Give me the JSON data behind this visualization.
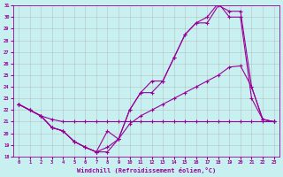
{
  "xlabel": "Windchill (Refroidissement éolien,°C)",
  "bg_color": "#c8f0f0",
  "grid_color": "#b0b0b0",
  "line_color": "#990099",
  "xlim": [
    -0.5,
    23.5
  ],
  "ylim": [
    18,
    31
  ],
  "yticks": [
    18,
    19,
    20,
    21,
    22,
    23,
    24,
    25,
    26,
    27,
    28,
    29,
    30,
    31
  ],
  "xticks": [
    0,
    1,
    2,
    3,
    4,
    5,
    6,
    7,
    8,
    9,
    10,
    11,
    12,
    13,
    14,
    15,
    16,
    17,
    18,
    19,
    20,
    21,
    22,
    23
  ],
  "series": [
    {
      "x": [
        0,
        1,
        2,
        3,
        4,
        5,
        6,
        7,
        8,
        9,
        10,
        11,
        12,
        13,
        14,
        15,
        16,
        17,
        18,
        19,
        20,
        21,
        22,
        23
      ],
      "y": [
        22.5,
        22.0,
        21.5,
        21.2,
        21.0,
        21.0,
        21.0,
        21.0,
        21.0,
        21.0,
        21.0,
        21.0,
        21.0,
        21.0,
        21.0,
        21.0,
        21.0,
        21.0,
        21.0,
        21.0,
        21.0,
        21.0,
        21.0,
        21.0
      ]
    },
    {
      "x": [
        0,
        1,
        2,
        3,
        4,
        5,
        6,
        7,
        8,
        9,
        10,
        11,
        12,
        13,
        14,
        15,
        16,
        17,
        18,
        19,
        20,
        21,
        22,
        23
      ],
      "y": [
        22.5,
        22.0,
        21.5,
        20.5,
        20.2,
        19.3,
        18.8,
        18.4,
        18.8,
        19.5,
        20.8,
        21.5,
        22.0,
        22.5,
        23.0,
        23.5,
        24.0,
        24.5,
        25.0,
        25.7,
        25.8,
        24.0,
        21.2,
        21.0
      ]
    },
    {
      "x": [
        0,
        1,
        2,
        3,
        4,
        5,
        6,
        7,
        8,
        9,
        10,
        11,
        12,
        13,
        14,
        15,
        16,
        17,
        18,
        19,
        20,
        21,
        22,
        23
      ],
      "y": [
        22.5,
        22.0,
        21.5,
        20.5,
        20.2,
        19.3,
        18.8,
        18.4,
        20.2,
        19.5,
        22.0,
        23.5,
        24.5,
        24.5,
        26.5,
        28.5,
        29.5,
        29.5,
        31.0,
        30.5,
        30.5,
        24.0,
        21.2,
        21.0
      ]
    },
    {
      "x": [
        0,
        2,
        3,
        4,
        5,
        6,
        7,
        8,
        9,
        10,
        11,
        12,
        13,
        14,
        15,
        16,
        17,
        18,
        19,
        20,
        21,
        22,
        23
      ],
      "y": [
        22.5,
        21.5,
        20.5,
        20.2,
        19.3,
        18.8,
        18.4,
        18.4,
        19.5,
        22.0,
        23.5,
        23.5,
        24.5,
        26.5,
        28.5,
        29.5,
        30.0,
        31.2,
        30.0,
        30.0,
        23.0,
        21.2,
        21.0
      ]
    }
  ]
}
